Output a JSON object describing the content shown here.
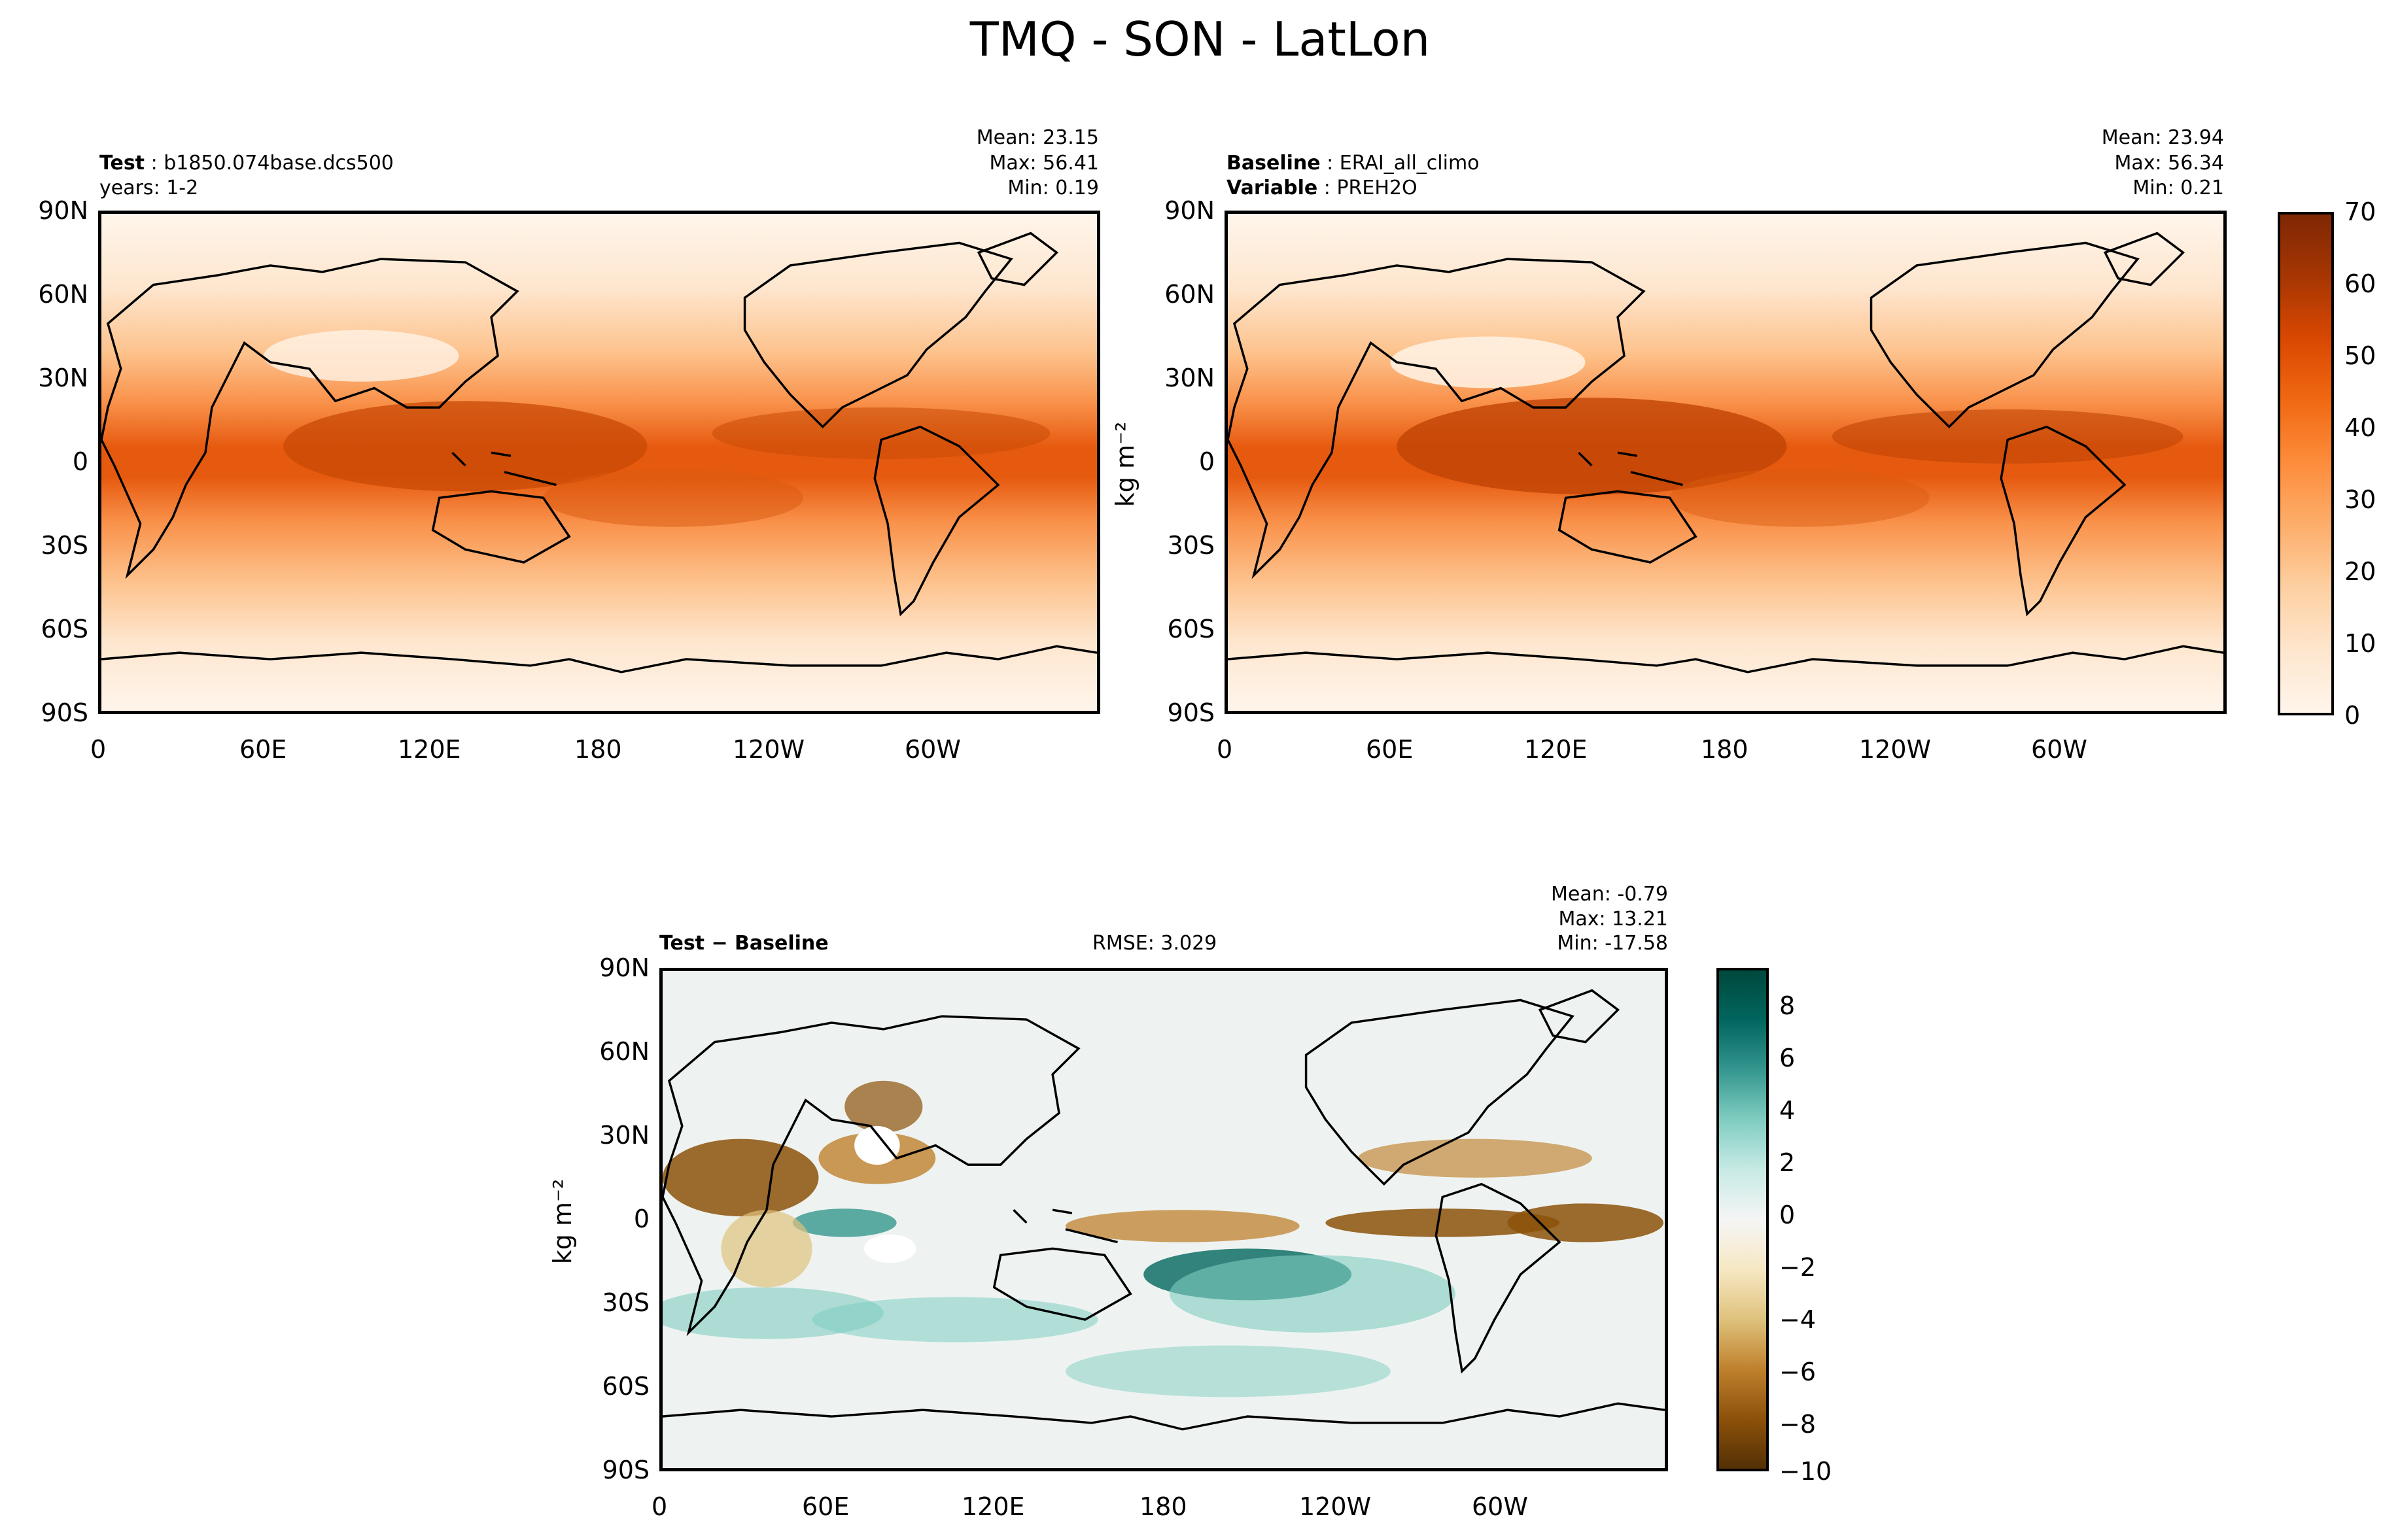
{
  "title": "TMQ - SON - LatLon",
  "lat_ticks": [
    "90N",
    "60N",
    "30N",
    "0",
    "30S",
    "60S",
    "90S"
  ],
  "lon_ticks": [
    "0",
    "60E",
    "120E",
    "180",
    "120W",
    "60W"
  ],
  "test_panel": {
    "label_bold": "Test",
    "label_value": "b1850.074base.dcs500",
    "line2": "years: 1-2",
    "mean": "Mean: 23.15",
    "max": "Max: 56.41",
    "min": "Min:  0.19"
  },
  "baseline_panel": {
    "label_bold": "Baseline",
    "label_value": "ERAI_all_climo",
    "label2_bold": "Variable",
    "label2_value": "PREH2O",
    "mean": "Mean: 23.94",
    "max": "Max: 56.34",
    "min": "Min:  0.21",
    "ylabel": "kg m⁻²"
  },
  "diff_panel": {
    "label": "Test − Baseline",
    "rmse": "RMSE: 3.029",
    "mean": "Mean: -0.79",
    "max": "Max: 13.21",
    "min": "Min: -17.58",
    "ylabel": "kg m⁻²"
  },
  "colorbar_main": {
    "ticks": [
      "70",
      "60",
      "50",
      "40",
      "30",
      "20",
      "10",
      "0"
    ],
    "colors": [
      "#fff5eb",
      "#fee6ce",
      "#fdd0a2",
      "#fdae6b",
      "#fd8d3c",
      "#f16913",
      "#d94801",
      "#a63603",
      "#7f2704"
    ]
  },
  "colorbar_diff": {
    "ticks": [
      "8",
      "6",
      "4",
      "2",
      "0",
      "−2",
      "−4",
      "−6",
      "−8",
      "−10"
    ],
    "colors": [
      "#00483d",
      "#01665e",
      "#35978f",
      "#80cdc1",
      "#c7eae5",
      "#f5f5f5",
      "#f6e8c3",
      "#dfc27d",
      "#bf812d",
      "#8c510a",
      "#543005"
    ]
  }
}
